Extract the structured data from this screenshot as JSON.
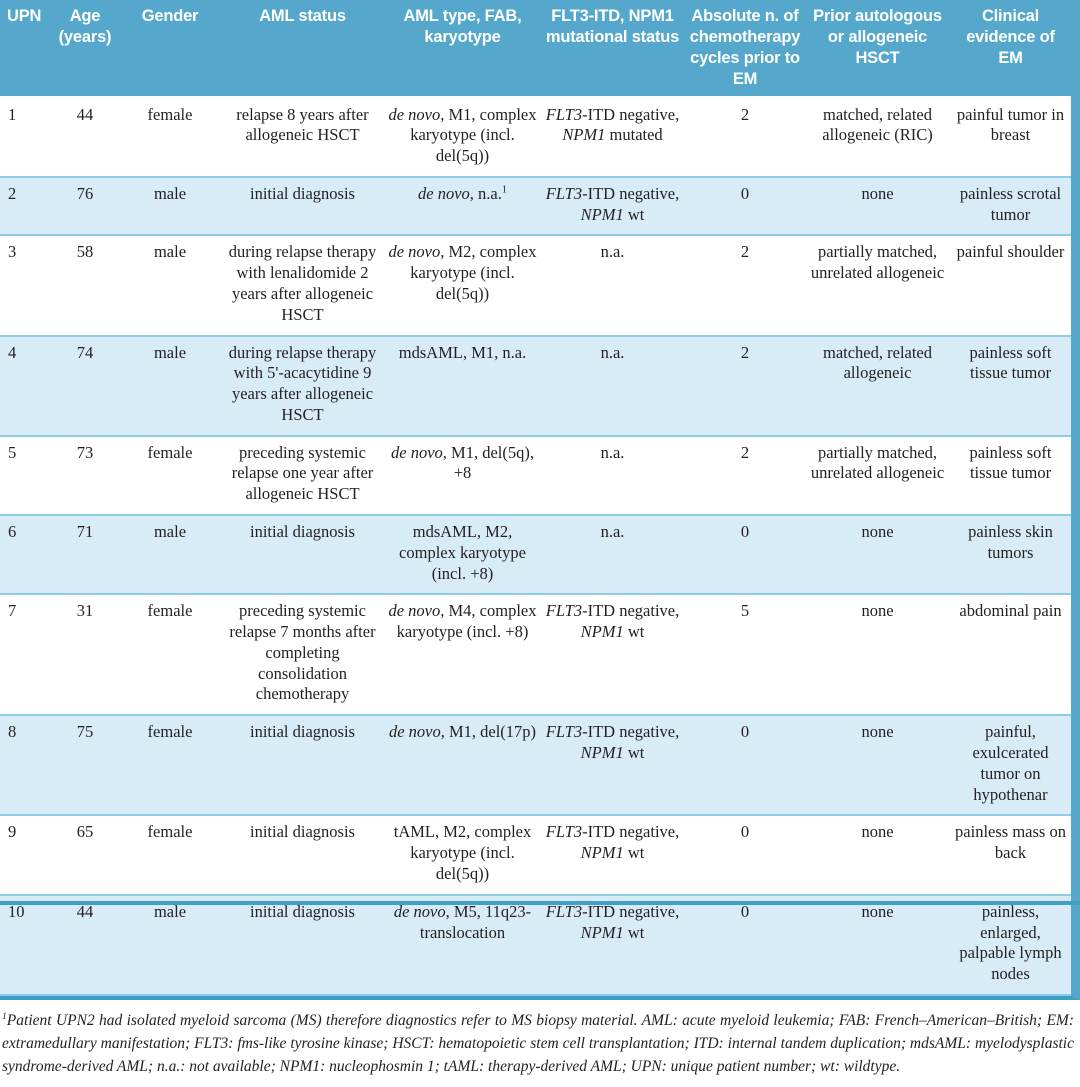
{
  "colors": {
    "header_bg": "#55a8cc",
    "header_text": "#ffffff",
    "stripe_bg": "#d8ecf8",
    "stripe_edge": "#8ecbe4",
    "rule": "#3f9fc8",
    "text": "#231f20",
    "page_bg": "#ffffff"
  },
  "table": {
    "col_keys": [
      "upn",
      "age",
      "gender",
      "aml-status",
      "aml-type-fab-karyotype",
      "mutational-status",
      "chemo-cycles",
      "prior-hsct",
      "clinical-evidence"
    ],
    "headers": [
      "UPN",
      "Age (years)",
      "Gender",
      "AML status",
      "AML type, FAB, karyotype",
      "FLT3-ITD, NPM1 mutational status",
      "Absolute n. of chemotherapy cycles  prior to EM",
      "Prior autologous or allogeneic HSCT",
      "Clinical evidence of EM"
    ],
    "rows": [
      {
        "cells": [
          "1",
          "44",
          "female",
          "relapse 8 years after allogeneic HSCT",
          [
            {
              "t": "de novo",
              "i": true
            },
            {
              "t": ", M1, complex karyotype (incl. del(5q))"
            }
          ],
          [
            {
              "t": "FLT3",
              "i": true
            },
            {
              "t": "-ITD negative, "
            },
            {
              "t": "NPM1",
              "i": true
            },
            {
              "t": " mutated"
            }
          ],
          "2",
          "matched, related allogeneic (RIC)",
          "painful tumor in breast"
        ]
      },
      {
        "cells": [
          "2",
          "76",
          "male",
          "initial diagnosis",
          [
            {
              "t": "de novo",
              "i": true
            },
            {
              "t": ", n.a."
            },
            {
              "t": "1",
              "sup": true
            }
          ],
          [
            {
              "t": "FLT3",
              "i": true
            },
            {
              "t": "-ITD negative, "
            },
            {
              "t": "NPM1",
              "i": true
            },
            {
              "t": " wt"
            }
          ],
          "0",
          "none",
          "painless scrotal tumor"
        ]
      },
      {
        "cells": [
          "3",
          "58",
          "male",
          "during relapse therapy with lenalidomide 2 years after allogeneic HSCT",
          [
            {
              "t": "de novo",
              "i": true
            },
            {
              "t": ", M2, complex karyotype (incl. del(5q))"
            }
          ],
          "n.a.",
          "2",
          "partially matched, unrelated allogeneic",
          "painful shoulder"
        ]
      },
      {
        "cells": [
          "4",
          "74",
          "male",
          "during relapse therapy with 5'-acacytidine 9 years after allogeneic HSCT",
          "mdsAML, M1, n.a.",
          "n.a.",
          "2",
          "matched, related allogeneic",
          "painless soft tissue tumor"
        ]
      },
      {
        "cells": [
          "5",
          "73",
          "female",
          "preceding systemic relapse one year after allogeneic HSCT",
          [
            {
              "t": "de novo",
              "i": true
            },
            {
              "t": ", M1, del(5q), +8"
            }
          ],
          "n.a.",
          "2",
          "partially matched, unrelated allogeneic",
          "painless soft tissue tumor"
        ]
      },
      {
        "cells": [
          "6",
          "71",
          "male",
          "initial diagnosis",
          "mdsAML, M2, complex karyotype (incl. +8)",
          "n.a.",
          "0",
          "none",
          "painless skin tumors"
        ]
      },
      {
        "cells": [
          "7",
          "31",
          "female",
          "preceding systemic relapse 7 months after completing consolidation chemotherapy",
          [
            {
              "t": "de novo",
              "i": true
            },
            {
              "t": ", M4, complex karyotype (incl. +8)"
            }
          ],
          [
            {
              "t": "FLT3",
              "i": true
            },
            {
              "t": "-ITD negative, "
            },
            {
              "t": "NPM1",
              "i": true
            },
            {
              "t": " wt"
            }
          ],
          "5",
          "none",
          "abdominal pain"
        ]
      },
      {
        "cells": [
          "8",
          "75",
          "female",
          "initial diagnosis",
          [
            {
              "t": "de novo",
              "i": true
            },
            {
              "t": ", M1, del(17p)"
            }
          ],
          [
            {
              "t": "FLT3",
              "i": true
            },
            {
              "t": "-ITD negative, "
            },
            {
              "t": "NPM1",
              "i": true
            },
            {
              "t": " wt"
            }
          ],
          "0",
          "none",
          "painful, exulcerated tumor on hypothenar"
        ]
      },
      {
        "cells": [
          "9",
          "65",
          "female",
          "initial diagnosis",
          "tAML, M2, complex karyotype (incl. del(5q))",
          [
            {
              "t": "FLT3",
              "i": true
            },
            {
              "t": "-ITD negative, "
            },
            {
              "t": "NPM1",
              "i": true
            },
            {
              "t": " wt"
            }
          ],
          "0",
          "none",
          "painless mass on back"
        ]
      },
      {
        "cells": [
          "10",
          "44",
          "male",
          "initial diagnosis",
          [
            {
              "t": "de novo",
              "i": true
            },
            {
              "t": ", M5, 11q23-translocation"
            }
          ],
          [
            {
              "t": "FLT3",
              "i": true
            },
            {
              "t": "-ITD negative, "
            },
            {
              "t": "NPM1",
              "i": true
            },
            {
              "t": " wt"
            }
          ],
          "0",
          "none",
          "painless, enlarged, palpable lymph nodes"
        ]
      }
    ]
  },
  "footnote": {
    "segments": [
      {
        "t": "1",
        "sup": true
      },
      {
        "t": "Patient UPN2 had isolated myeloid sarcoma (MS) therefore diagnostics refer to MS biopsy material. AML: acute myeloid leukemia; FAB: French–American–British; EM: extramedullary manifestation; "
      },
      {
        "t": "FLT3",
        "i": true
      },
      {
        "t": ": fms-like tyrosine kinase; HSCT: hematopoietic stem cell transplantation; ITD: internal tandem duplication; mdsAML: myelodysplastic syndrome-derived AML; n.a.: not available; "
      },
      {
        "t": "NPM1",
        "i": true
      },
      {
        "t": ": nucleophosmin 1; tAML: therapy-derived AML; UPN: unique patient number; wt: wildtype."
      }
    ]
  }
}
